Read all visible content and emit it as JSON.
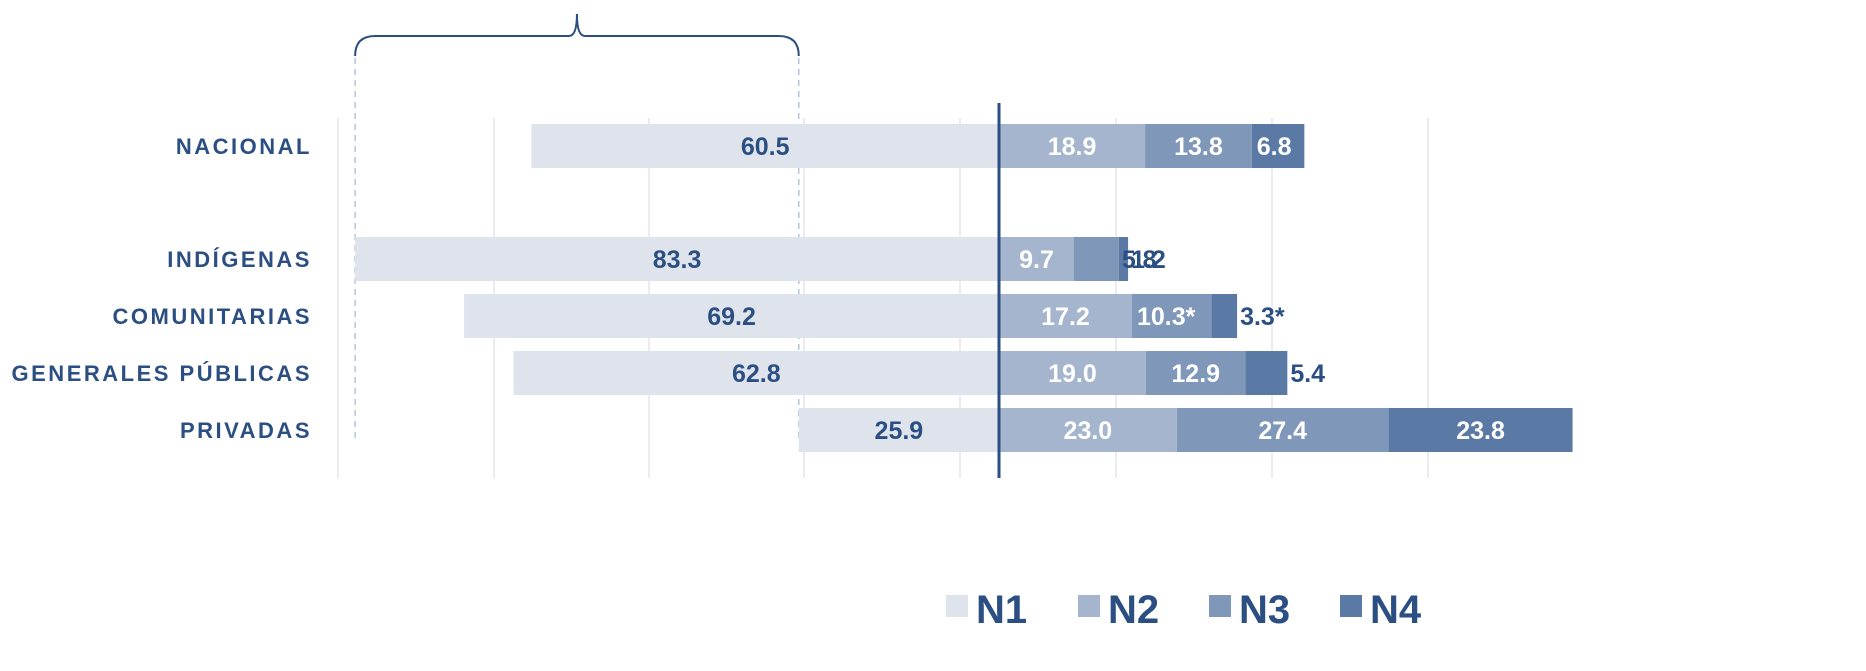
{
  "chart_data": {
    "type": "bar",
    "orientation": "horizontal-diverging",
    "categories": [
      "NACIONAL",
      "INDÍGENAS",
      "COMUNITARIAS",
      "GENERALES PÚBLICAS",
      "PRIVADAS"
    ],
    "series": [
      {
        "name": "N1",
        "values": [
          60.5,
          83.3,
          69.2,
          62.8,
          25.9
        ],
        "labels": [
          "60.5",
          "83.3",
          "69.2",
          "62.8",
          "25.9"
        ],
        "color": "#dfe4ec",
        "label_color": "#2b4f82"
      },
      {
        "name": "N2",
        "values": [
          18.9,
          9.7,
          17.2,
          19.0,
          23.0
        ],
        "labels": [
          "18.9",
          "9.7",
          "17.2",
          "19.0",
          "23.0"
        ],
        "color": "#a5b5cd",
        "label_color": "#ffffff"
      },
      {
        "name": "N3",
        "values": [
          13.8,
          5.8,
          10.3,
          12.9,
          27.4
        ],
        "labels": [
          "13.8",
          "5.8",
          "10.3*",
          "12.9",
          "27.4"
        ],
        "color": "#7f97b8",
        "label_color": "#ffffff"
      },
      {
        "name": "N4",
        "values": [
          6.8,
          1.2,
          3.3,
          5.4,
          23.8
        ],
        "labels": [
          "6.8",
          "1.2",
          "3.3*",
          "5.4",
          "23.8"
        ],
        "color": "#5a7aa5",
        "label_color": "#ffffff"
      }
    ],
    "baseline_value": 0,
    "left_of_baseline": [
      "N1"
    ],
    "right_of_baseline": [
      "N2",
      "N3",
      "N4"
    ],
    "xlim": [
      -85,
      73
    ],
    "grid": true,
    "legend_position": "bottom",
    "bracket_range": [
      -83.3,
      -25.9
    ]
  }
}
